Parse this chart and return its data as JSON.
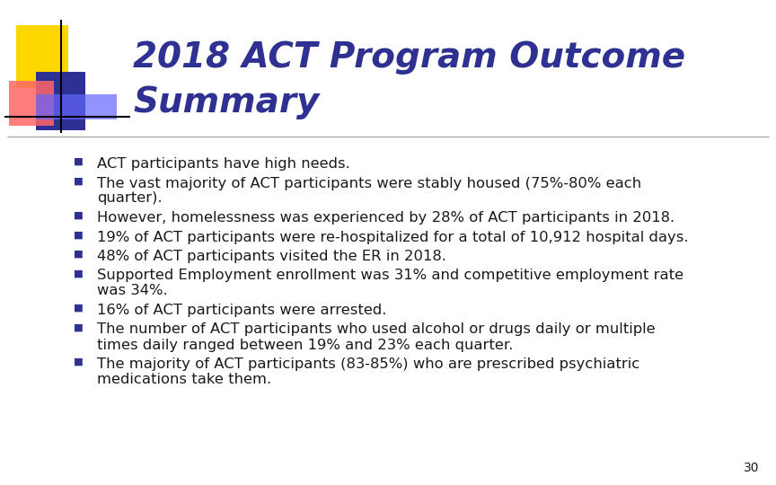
{
  "title_line1": "2018 ACT Program Outcome",
  "title_line2": "Summary",
  "title_color": "#2E3192",
  "title_fontsize": 28,
  "background_color": "#FFFFFF",
  "bullet_color": "#2E3192",
  "text_color": "#1a1a1a",
  "bullet_fontsize": 11.8,
  "page_number": "30",
  "bullet_points": [
    [
      "ACT participants have high needs."
    ],
    [
      "The vast majority of ACT participants were stably housed (75%-80% each",
      "quarter)."
    ],
    [
      "However, homelessness was experienced by 28% of ACT participants in 2018."
    ],
    [
      "19% of ACT participants were re-hospitalized for a total of 10,912 hospital days."
    ],
    [
      "48% of ACT participants visited the ER in 2018."
    ],
    [
      "Supported Employment enrollment was 31% and competitive employment rate",
      "was 34%."
    ],
    [
      "16% of ACT participants were arrested."
    ],
    [
      "The number of ACT participants who used alcohol or drugs daily or multiple",
      "times daily ranged between 19% and 23% each quarter."
    ],
    [
      "The majority of ACT participants (83-85%) who are prescribed psychiatric",
      "medications take them."
    ]
  ],
  "separator_color": "#AAAAAA",
  "logo_yellow": "#FFD700",
  "logo_red_start": "#FF6666",
  "logo_red_end": "#FF0000",
  "logo_blue": "#2E3192",
  "logo_blue_light": "#6666FF"
}
